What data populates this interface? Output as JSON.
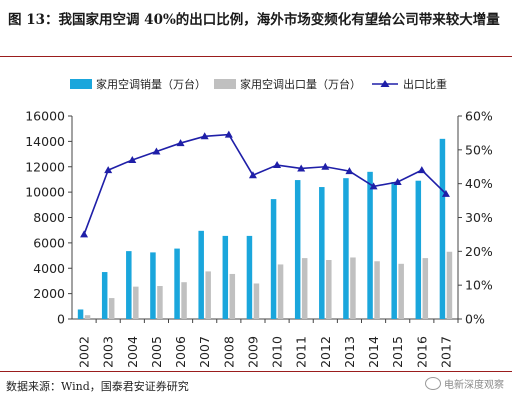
{
  "figure": {
    "title": "图 13：我国家用空调 40%的出口比例，海外市场变频化有望给公司带来较大增量",
    "source": "数据来源：Wind，国泰君安证券研究",
    "watermark": "电新深度观察"
  },
  "chart_data": {
    "type": "bar",
    "categories": [
      "2002",
      "2003",
      "2004",
      "2005",
      "2006",
      "2007",
      "2008",
      "2009",
      "2010",
      "2011",
      "2012",
      "2013",
      "2014",
      "2015",
      "2016",
      "2017"
    ],
    "series": [
      {
        "name": "家用空调销量（万台）",
        "type": "bar",
        "axis": "left",
        "color": "#1aa6dc",
        "values": [
          750,
          3700,
          5350,
          5250,
          5550,
          6950,
          6550,
          6550,
          9450,
          10950,
          10400,
          11100,
          11600,
          10800,
          10900,
          14200
        ]
      },
      {
        "name": "家用空调出口量（万台）",
        "type": "bar",
        "axis": "left",
        "color": "#c0c0c0",
        "values": [
          300,
          1650,
          2550,
          2600,
          2900,
          3750,
          3550,
          2800,
          4300,
          4800,
          4650,
          4850,
          4550,
          4350,
          4800,
          5300
        ]
      },
      {
        "name": "出口比重",
        "type": "line",
        "axis": "right",
        "color": "#1f1fa8",
        "values": [
          0.25,
          0.44,
          0.47,
          0.495,
          0.52,
          0.54,
          0.545,
          0.425,
          0.455,
          0.445,
          0.45,
          0.437,
          0.392,
          0.405,
          0.44,
          0.37
        ]
      }
    ],
    "y_left": {
      "ticks": [
        "0",
        "2000",
        "4000",
        "6000",
        "8000",
        "10000",
        "12000",
        "14000",
        "16000"
      ],
      "lim": [
        0,
        16000
      ]
    },
    "y_right": {
      "ticks": [
        "0%",
        "10%",
        "20%",
        "30%",
        "40%",
        "50%",
        "60%"
      ],
      "lim": [
        0,
        0.6
      ]
    },
    "grid": false,
    "legend_position": "top"
  }
}
